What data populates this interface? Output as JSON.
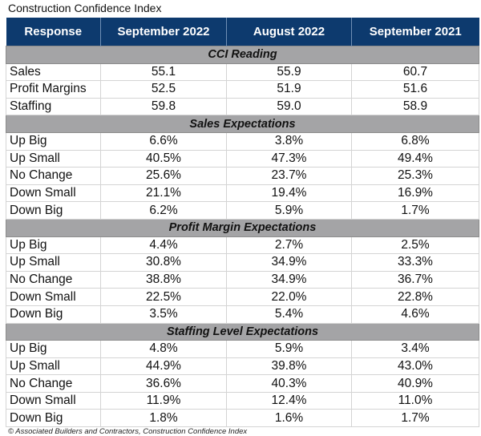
{
  "title": "Construction Confidence Index",
  "footer": "© Associated Builders and Contractors, Construction Confidence Index",
  "colors": {
    "header": "#0d3a6e",
    "section": "#a4a4a6"
  },
  "chart_data": {
    "type": "table",
    "title": "Construction Confidence Index",
    "columns": [
      "Response",
      "September 2022",
      "August 2022",
      "September 2021"
    ],
    "sections": [
      {
        "name": "CCI Reading",
        "rows": [
          [
            "Sales",
            "55.1",
            "55.9",
            "60.7"
          ],
          [
            "Profit Margins",
            "52.5",
            "51.9",
            "51.6"
          ],
          [
            "Staffing",
            "59.8",
            "59.0",
            "58.9"
          ]
        ]
      },
      {
        "name": "Sales Expectations",
        "rows": [
          [
            "Up Big",
            "6.6%",
            "3.8%",
            "6.8%"
          ],
          [
            "Up Small",
            "40.5%",
            "47.3%",
            "49.4%"
          ],
          [
            "No Change",
            "25.6%",
            "23.7%",
            "25.3%"
          ],
          [
            "Down Small",
            "21.1%",
            "19.4%",
            "16.9%"
          ],
          [
            "Down Big",
            "6.2%",
            "5.9%",
            "1.7%"
          ]
        ]
      },
      {
        "name": "Profit Margin Expectations",
        "rows": [
          [
            "Up Big",
            "4.4%",
            "2.7%",
            "2.5%"
          ],
          [
            "Up Small",
            "30.8%",
            "34.9%",
            "33.3%"
          ],
          [
            "No Change",
            "38.8%",
            "34.9%",
            "36.7%"
          ],
          [
            "Down Small",
            "22.5%",
            "22.0%",
            "22.8%"
          ],
          [
            "Down Big",
            "3.5%",
            "5.4%",
            "4.6%"
          ]
        ]
      },
      {
        "name": "Staffing Level Expectations",
        "rows": [
          [
            "Up Big",
            "4.8%",
            "5.9%",
            "3.4%"
          ],
          [
            "Up Small",
            "44.9%",
            "39.8%",
            "43.0%"
          ],
          [
            "No Change",
            "36.6%",
            "40.3%",
            "40.9%"
          ],
          [
            "Down Small",
            "11.9%",
            "12.4%",
            "11.0%"
          ],
          [
            "Down Big",
            "1.8%",
            "1.6%",
            "1.7%"
          ]
        ]
      }
    ]
  }
}
